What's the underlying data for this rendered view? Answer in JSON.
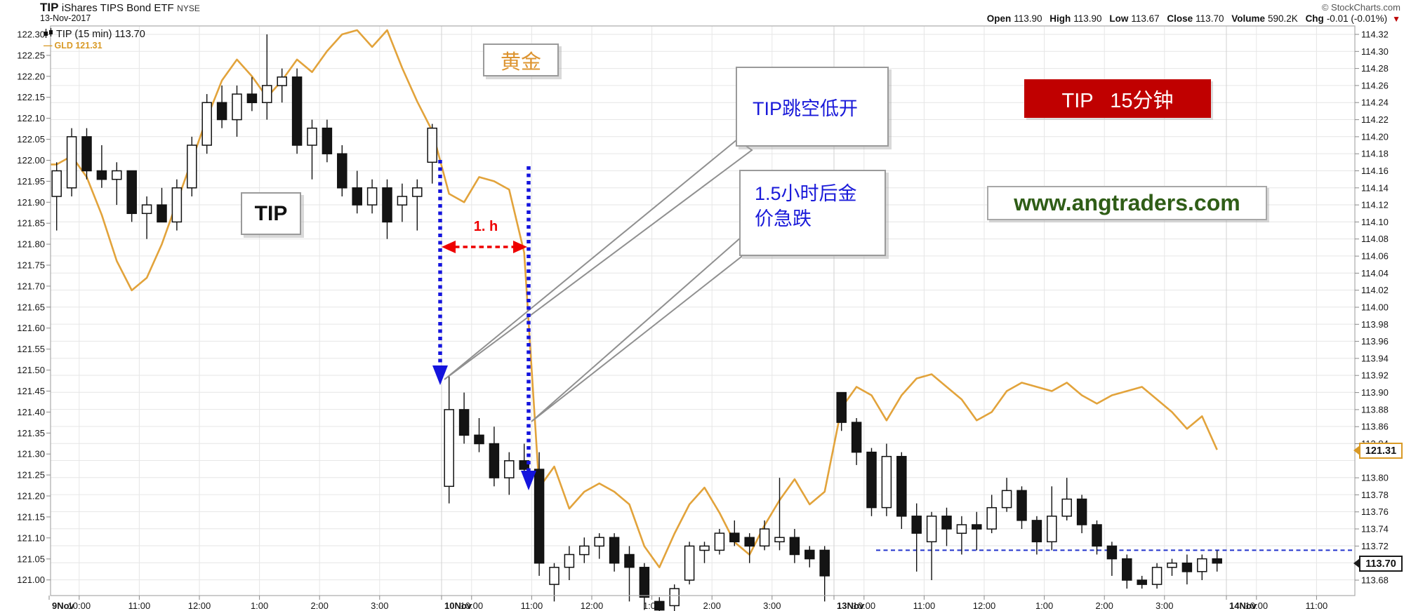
{
  "header": {
    "symbol": "TIP",
    "name": "iShares TIPS Bond ETF",
    "exchange": "NYSE",
    "date": "13-Nov-2017",
    "copyright": "© StockCharts.com",
    "quote": {
      "open": [
        "Open",
        "113.90"
      ],
      "high": [
        "High",
        "113.90"
      ],
      "low": [
        "Low",
        "113.67"
      ],
      "close": [
        "Close",
        "113.70"
      ],
      "volume": [
        "Volume",
        "590.2K"
      ],
      "chg": [
        "Chg",
        "-0.01 (-0.01%)"
      ],
      "chg_icon": "▼"
    }
  },
  "legend": {
    "tip_label": "TIP (15 min) 113.70",
    "gld_dash": "—",
    "gld_label": "GLD 121.31"
  },
  "annotations": {
    "gold": "黄金",
    "callout1": "TIP跳空低开",
    "callout2_line1": "1.5小时后金",
    "callout2_line2": "价急跌",
    "tip_label": "TIP",
    "interval_box": "TIP   15分钟",
    "website": "www.angtraders.com",
    "hour_label": "1. h"
  },
  "tags": {
    "gld_last": "121.31",
    "tip_last": "113.70"
  },
  "colors": {
    "gld_line": "#e2a33b",
    "candle_fill": "#141414",
    "grid": "#e6e6e6",
    "grid_day": "#d2d2d2",
    "frame": "#ababab",
    "annotation_blue": "#1a1ad9",
    "arrow_blue": "#1414dd",
    "arrow_red": "#ee0000",
    "support_blue": "#2233cc",
    "red_box_bg": "#c00000",
    "website_green": "#2f5d17",
    "gold_text": "#dd9430"
  },
  "chart_data": {
    "type": "candlestick+line",
    "title": "TIP (15 min)",
    "overlay_series": "GLD",
    "grid": true,
    "legend_position": "top-left",
    "left_axis": {
      "series": "GLD",
      "min": 121.0,
      "max": 122.3,
      "step": 0.05,
      "ticks": [
        "122.30",
        "122.25",
        "122.20",
        "122.15",
        "122.10",
        "122.05",
        "122.00",
        "121.95",
        "121.90",
        "121.85",
        "121.80",
        "121.75",
        "121.70",
        "121.65",
        "121.60",
        "121.55",
        "121.50",
        "121.45",
        "121.40",
        "121.35",
        "121.30",
        "121.25",
        "121.20",
        "121.15",
        "121.10",
        "121.05",
        "121.00"
      ]
    },
    "right_axis": {
      "series": "TIP",
      "min": 113.68,
      "max": 114.32,
      "step": 0.02,
      "ticks": [
        "114.32",
        "114.30",
        "114.28",
        "114.26",
        "114.24",
        "114.22",
        "114.20",
        "114.18",
        "114.16",
        "114.14",
        "114.12",
        "114.10",
        "114.08",
        "114.06",
        "114.04",
        "114.02",
        "114.00",
        "113.98",
        "113.96",
        "113.94",
        "113.92",
        "113.90",
        "113.88",
        "113.86",
        "113.84",
        "113.80",
        "113.78",
        "113.76",
        "113.74",
        "113.72",
        "113.68"
      ]
    },
    "x_axis": {
      "sessions": [
        {
          "label": "9Nov",
          "hours": [
            "10:00",
            "11:00",
            "12:00",
            "1:00",
            "2:00",
            "3:00"
          ]
        },
        {
          "label": "10Nov",
          "hours": [
            "10:00",
            "11:00",
            "12:00",
            "1:00",
            "2:00",
            "3:00"
          ]
        },
        {
          "label": "13Nov",
          "hours": [
            "10:00",
            "11:00",
            "12:00",
            "1:00",
            "2:00",
            "3:00"
          ]
        },
        {
          "label": "14Nov",
          "hours": [
            "10:00",
            "11:00"
          ]
        }
      ]
    },
    "support_line_value": 113.715,
    "last_prices": {
      "tip": 113.7,
      "gld": 121.31
    },
    "days": [
      {
        "date": "9-Nov-2017",
        "candles": [
          [
            114.13,
            114.17,
            114.09,
            114.16
          ],
          [
            114.14,
            114.21,
            114.13,
            114.2
          ],
          [
            114.2,
            114.21,
            114.15,
            114.16
          ],
          [
            114.16,
            114.19,
            114.14,
            114.15
          ],
          [
            114.15,
            114.17,
            114.12,
            114.16
          ],
          [
            114.16,
            114.16,
            114.1,
            114.11
          ],
          [
            114.11,
            114.13,
            114.08,
            114.12
          ],
          [
            114.12,
            114.14,
            114.1,
            114.1
          ],
          [
            114.1,
            114.15,
            114.09,
            114.14
          ],
          [
            114.14,
            114.2,
            114.13,
            114.19
          ],
          [
            114.19,
            114.25,
            114.18,
            114.24
          ],
          [
            114.24,
            114.26,
            114.21,
            114.22
          ],
          [
            114.22,
            114.26,
            114.2,
            114.25
          ],
          [
            114.25,
            114.27,
            114.23,
            114.24
          ],
          [
            114.24,
            114.32,
            114.22,
            114.26
          ],
          [
            114.26,
            114.28,
            114.24,
            114.27
          ],
          [
            114.27,
            114.28,
            114.18,
            114.19
          ],
          [
            114.19,
            114.22,
            114.15,
            114.21
          ],
          [
            114.21,
            114.22,
            114.17,
            114.18
          ],
          [
            114.18,
            114.19,
            114.13,
            114.14
          ],
          [
            114.14,
            114.16,
            114.11,
            114.12
          ],
          [
            114.12,
            114.15,
            114.11,
            114.14
          ],
          [
            114.14,
            114.15,
            114.08,
            114.1
          ],
          [
            114.12,
            114.145,
            114.1,
            114.13
          ],
          [
            114.13,
            114.15,
            114.09,
            114.14
          ],
          [
            114.17,
            114.215,
            114.145,
            114.21
          ]
        ],
        "gld": [
          121.99,
          122.01,
          121.96,
          121.87,
          121.76,
          121.69,
          121.72,
          121.8,
          121.9,
          122.0,
          122.1,
          122.19,
          122.24,
          122.2,
          122.15,
          122.19,
          122.24,
          122.21,
          122.26,
          122.3,
          122.31,
          122.27,
          122.31,
          122.22,
          122.14,
          122.07
        ]
      },
      {
        "date": "10-Nov-2017",
        "candles": [
          [
            113.79,
            113.92,
            113.77,
            113.88
          ],
          [
            113.88,
            113.9,
            113.84,
            113.85
          ],
          [
            113.85,
            113.87,
            113.83,
            113.84
          ],
          [
            113.84,
            113.86,
            113.79,
            113.8
          ],
          [
            113.8,
            113.83,
            113.78,
            113.82
          ],
          [
            113.82,
            113.84,
            113.8,
            113.81
          ],
          [
            113.81,
            113.83,
            113.685,
            113.7
          ],
          [
            113.675,
            113.7,
            113.655,
            113.695
          ],
          [
            113.695,
            113.72,
            113.68,
            113.71
          ],
          [
            113.71,
            113.73,
            113.7,
            113.72
          ],
          [
            113.72,
            113.735,
            113.705,
            113.73
          ],
          [
            113.73,
            113.735,
            113.69,
            113.7
          ],
          [
            113.71,
            113.72,
            113.655,
            113.695
          ],
          [
            113.695,
            113.7,
            113.645,
            113.66
          ],
          [
            113.655,
            113.66,
            113.635,
            113.645
          ],
          [
            113.65,
            113.675,
            113.64,
            113.67
          ],
          [
            113.68,
            113.725,
            113.675,
            113.72
          ],
          [
            113.715,
            113.725,
            113.7,
            113.72
          ],
          [
            113.715,
            113.74,
            113.71,
            113.735
          ],
          [
            113.735,
            113.75,
            113.72,
            113.725
          ],
          [
            113.73,
            113.735,
            113.7,
            113.72
          ],
          [
            113.72,
            113.75,
            113.715,
            113.74
          ],
          [
            113.725,
            113.8,
            113.715,
            113.73
          ],
          [
            113.73,
            113.74,
            113.7,
            113.71
          ],
          [
            113.715,
            113.72,
            113.695,
            113.705
          ],
          [
            113.715,
            113.72,
            113.655,
            113.685
          ]
        ],
        "gld": [
          121.92,
          121.9,
          121.96,
          121.95,
          121.93,
          121.78,
          121.22,
          121.27,
          121.17,
          121.21,
          121.23,
          121.21,
          121.18,
          121.08,
          121.03,
          121.11,
          121.18,
          121.22,
          121.16,
          121.09,
          121.06,
          121.13,
          121.19,
          121.24,
          121.18,
          121.21
        ]
      },
      {
        "date": "13-Nov-2017",
        "candles": [
          [
            113.9,
            113.9,
            113.855,
            113.865
          ],
          [
            113.865,
            113.87,
            113.815,
            113.83
          ],
          [
            113.83,
            113.835,
            113.755,
            113.765
          ],
          [
            113.765,
            113.84,
            113.755,
            113.825
          ],
          [
            113.825,
            113.83,
            113.74,
            113.755
          ],
          [
            113.755,
            113.77,
            113.69,
            113.735
          ],
          [
            113.725,
            113.76,
            113.68,
            113.755
          ],
          [
            113.755,
            113.765,
            113.72,
            113.74
          ],
          [
            113.735,
            113.755,
            113.71,
            113.745
          ],
          [
            113.745,
            113.76,
            113.715,
            113.74
          ],
          [
            113.74,
            113.78,
            113.735,
            113.765
          ],
          [
            113.765,
            113.8,
            113.76,
            113.785
          ],
          [
            113.785,
            113.79,
            113.74,
            113.75
          ],
          [
            113.75,
            113.755,
            113.71,
            113.725
          ],
          [
            113.725,
            113.79,
            113.715,
            113.755
          ],
          [
            113.755,
            113.8,
            113.75,
            113.775
          ],
          [
            113.775,
            113.78,
            113.735,
            113.745
          ],
          [
            113.745,
            113.75,
            113.71,
            113.72
          ],
          [
            113.72,
            113.725,
            113.685,
            113.705
          ],
          [
            113.705,
            113.71,
            113.67,
            113.68
          ],
          [
            113.68,
            113.685,
            113.67,
            113.675
          ],
          [
            113.675,
            113.7,
            113.67,
            113.695
          ],
          [
            113.695,
            113.705,
            113.685,
            113.7
          ],
          [
            113.7,
            113.71,
            113.675,
            113.69
          ],
          [
            113.69,
            113.71,
            113.68,
            113.705
          ],
          [
            113.705,
            113.715,
            113.69,
            113.7
          ]
        ],
        "gld": [
          121.41,
          121.46,
          121.44,
          121.38,
          121.44,
          121.48,
          121.49,
          121.46,
          121.43,
          121.38,
          121.4,
          121.45,
          121.47,
          121.46,
          121.45,
          121.47,
          121.44,
          121.42,
          121.44,
          121.45,
          121.46,
          121.43,
          121.4,
          121.36,
          121.39,
          121.31
        ]
      }
    ]
  }
}
